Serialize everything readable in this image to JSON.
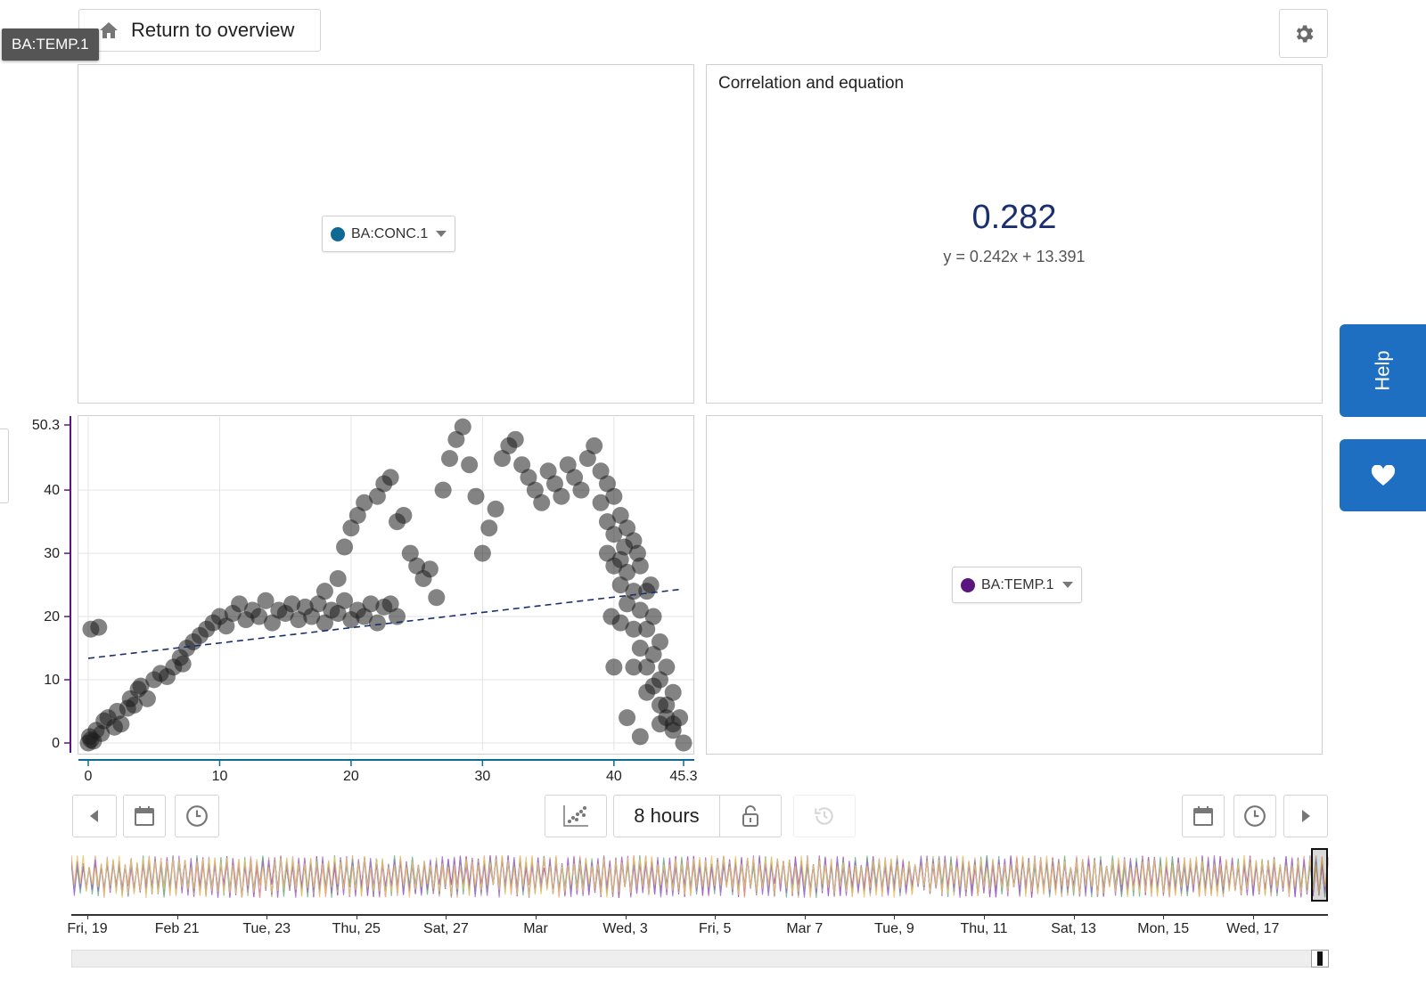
{
  "header": {
    "return_label": "Return to overview",
    "active_tag": "BA:TEMP.1"
  },
  "top_left": {
    "series_select": "BA:CONC.1",
    "series_color": "#0e6a93"
  },
  "correlation": {
    "title": "Correlation and equation",
    "value": "0.282",
    "equation": "y = 0.242x + 13.391",
    "value_color": "#1a2f6e"
  },
  "bottom_right": {
    "series_select": "BA:TEMP.1",
    "series_color": "#5b157f"
  },
  "toolbar": {
    "duration": "8 hours"
  },
  "side": {
    "help_label": "Help"
  },
  "timeline": {
    "labels": [
      "Fri, 19",
      "Feb 21",
      "Tue, 23",
      "Thu, 25",
      "Sat, 27",
      "Mar",
      "Wed, 3",
      "Fri, 5",
      "Mar 7",
      "Tue, 9",
      "Thu, 11",
      "Sat, 13",
      "Mon, 15",
      "Wed, 17"
    ]
  },
  "chart_data": {
    "type": "scatter",
    "xlim": [
      0,
      45.3
    ],
    "ylim": [
      0,
      50.3
    ],
    "x_ticks": [
      "0",
      "10",
      "20",
      "30",
      "40",
      "45.3"
    ],
    "y_ticks": [
      "0",
      "10",
      "20",
      "30",
      "40",
      "50.3"
    ],
    "grid": true,
    "regression": {
      "slope": 0.242,
      "intercept": 13.391
    },
    "points": [
      [
        0,
        0
      ],
      [
        0.2,
        0.5
      ],
      [
        0.1,
        1
      ],
      [
        0.4,
        0.3
      ],
      [
        0.6,
        2
      ],
      [
        1,
        1.5
      ],
      [
        1.2,
        3.5
      ],
      [
        1.5,
        4
      ],
      [
        2,
        2.5
      ],
      [
        2.2,
        5
      ],
      [
        2.5,
        3
      ],
      [
        3,
        5.5
      ],
      [
        3.2,
        7
      ],
      [
        3.5,
        6
      ],
      [
        3.8,
        8.5
      ],
      [
        4,
        9
      ],
      [
        4.5,
        7
      ],
      [
        5,
        10
      ],
      [
        5.5,
        11
      ],
      [
        6,
        10.5
      ],
      [
        6.5,
        12
      ],
      [
        7,
        13.5
      ],
      [
        7.2,
        12.5
      ],
      [
        7.5,
        15
      ],
      [
        8,
        16
      ],
      [
        8.5,
        17
      ],
      [
        9,
        18
      ],
      [
        9.5,
        19
      ],
      [
        10,
        20
      ],
      [
        10.5,
        18.5
      ],
      [
        11,
        20.5
      ],
      [
        11.5,
        22
      ],
      [
        12,
        19.5
      ],
      [
        12.5,
        21
      ],
      [
        13,
        20
      ],
      [
        13.5,
        22.5
      ],
      [
        14,
        19
      ],
      [
        14.5,
        21
      ],
      [
        15,
        20.5
      ],
      [
        15.5,
        22
      ],
      [
        16,
        19.5
      ],
      [
        16.5,
        21.5
      ],
      [
        17,
        20
      ],
      [
        17.5,
        22
      ],
      [
        18,
        19
      ],
      [
        18.5,
        21
      ],
      [
        19,
        20.5
      ],
      [
        19.5,
        22.5
      ],
      [
        20,
        19.5
      ],
      [
        20.5,
        21
      ],
      [
        21,
        20
      ],
      [
        21.5,
        22
      ],
      [
        22,
        19
      ],
      [
        22.5,
        21.5
      ],
      [
        23,
        22
      ],
      [
        23.5,
        20
      ],
      [
        0.2,
        18
      ],
      [
        0.8,
        18.3
      ],
      [
        18,
        24
      ],
      [
        19,
        26
      ],
      [
        19.5,
        31
      ],
      [
        20,
        34
      ],
      [
        20.5,
        36
      ],
      [
        21,
        38
      ],
      [
        22,
        39
      ],
      [
        22.5,
        41
      ],
      [
        23,
        42
      ],
      [
        23.5,
        35
      ],
      [
        24,
        36
      ],
      [
        24.5,
        30
      ],
      [
        25,
        28
      ],
      [
        25.5,
        26
      ],
      [
        26,
        27.5
      ],
      [
        26.5,
        23
      ],
      [
        27,
        40
      ],
      [
        27.5,
        45
      ],
      [
        28,
        48
      ],
      [
        28.5,
        50
      ],
      [
        29,
        44
      ],
      [
        29.5,
        39
      ],
      [
        30,
        30
      ],
      [
        30.5,
        34
      ],
      [
        31,
        37
      ],
      [
        31.5,
        45
      ],
      [
        32,
        47
      ],
      [
        32.5,
        48
      ],
      [
        33,
        44
      ],
      [
        33.5,
        42
      ],
      [
        34,
        40
      ],
      [
        34.5,
        38
      ],
      [
        35,
        43
      ],
      [
        35.5,
        41
      ],
      [
        36,
        39
      ],
      [
        36.5,
        44
      ],
      [
        37,
        42
      ],
      [
        37.5,
        40
      ],
      [
        38,
        45
      ],
      [
        38.5,
        47
      ],
      [
        39,
        43
      ],
      [
        39.5,
        41
      ],
      [
        40,
        39
      ],
      [
        40.5,
        36
      ],
      [
        41,
        34
      ],
      [
        41.5,
        32
      ],
      [
        42,
        28
      ],
      [
        42.5,
        24
      ],
      [
        43,
        20
      ],
      [
        43.5,
        16
      ],
      [
        44,
        12
      ],
      [
        44.5,
        8
      ],
      [
        45,
        4
      ],
      [
        45.3,
        0
      ],
      [
        39,
        38
      ],
      [
        39.5,
        35
      ],
      [
        40,
        33
      ],
      [
        40.5,
        29
      ],
      [
        41,
        27
      ],
      [
        41.5,
        24
      ],
      [
        42,
        21
      ],
      [
        42.5,
        18
      ],
      [
        43,
        14
      ],
      [
        43.5,
        10
      ],
      [
        44,
        6
      ],
      [
        44.5,
        3
      ],
      [
        40,
        28
      ],
      [
        40.5,
        25
      ],
      [
        41,
        22
      ],
      [
        41.5,
        18
      ],
      [
        42,
        15
      ],
      [
        42.5,
        12
      ],
      [
        43,
        9
      ],
      [
        43.5,
        6
      ],
      [
        44,
        4
      ],
      [
        44.5,
        2
      ],
      [
        39.5,
        30
      ],
      [
        40.5,
        19
      ],
      [
        41.5,
        12
      ],
      [
        42.5,
        8
      ],
      [
        43.5,
        3
      ],
      [
        42,
        1
      ],
      [
        41,
        4
      ],
      [
        40,
        12
      ],
      [
        39.8,
        20
      ],
      [
        40.8,
        31
      ],
      [
        41.8,
        30
      ],
      [
        42.8,
        25
      ]
    ]
  }
}
